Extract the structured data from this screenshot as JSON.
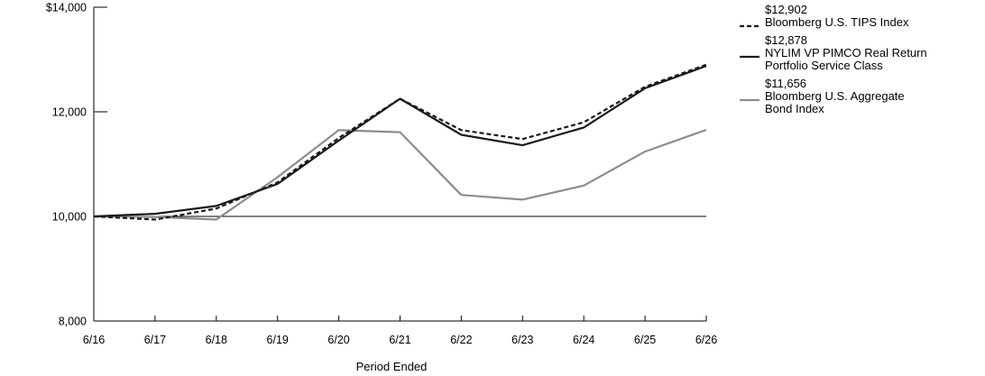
{
  "chart_data": {
    "type": "line",
    "x": [
      "6/16",
      "6/17",
      "6/18",
      "6/19",
      "6/20",
      "6/21",
      "6/22",
      "6/23",
      "6/24",
      "6/25",
      "6/26"
    ],
    "xlabel": "Period Ended",
    "ylabel": "",
    "ylim": [
      8000,
      14000
    ],
    "yticks": [
      "8,000",
      "10,000",
      "12,000",
      "$14,000"
    ],
    "ytick_values": [
      8000,
      10000,
      12000,
      14000
    ],
    "grid": false,
    "reference_line": 10000,
    "legend_position": "right",
    "series": [
      {
        "name": "Bloomberg U.S. TIPS Index",
        "end_label": "$12,902",
        "style": "dashed",
        "color": "#1a1a1a",
        "values": [
          10000,
          9940,
          10150,
          10650,
          11500,
          12250,
          11650,
          11480,
          11800,
          12480,
          12902
        ]
      },
      {
        "name": "NYLIM VP PIMCO Real Return\nPortfolio Service Class",
        "end_label": "$12,878",
        "style": "solid",
        "color": "#1a1a1a",
        "values": [
          10000,
          10050,
          10200,
          10620,
          11450,
          12250,
          11560,
          11360,
          11700,
          12450,
          12878
        ]
      },
      {
        "name": "Bloomberg U.S. Aggregate\nBond Index",
        "end_label": "$11,656",
        "style": "solid",
        "color": "#8c8c8c",
        "values": [
          10000,
          9990,
          9940,
          10750,
          11650,
          11610,
          10410,
          10320,
          10590,
          11240,
          11656
        ]
      }
    ]
  }
}
